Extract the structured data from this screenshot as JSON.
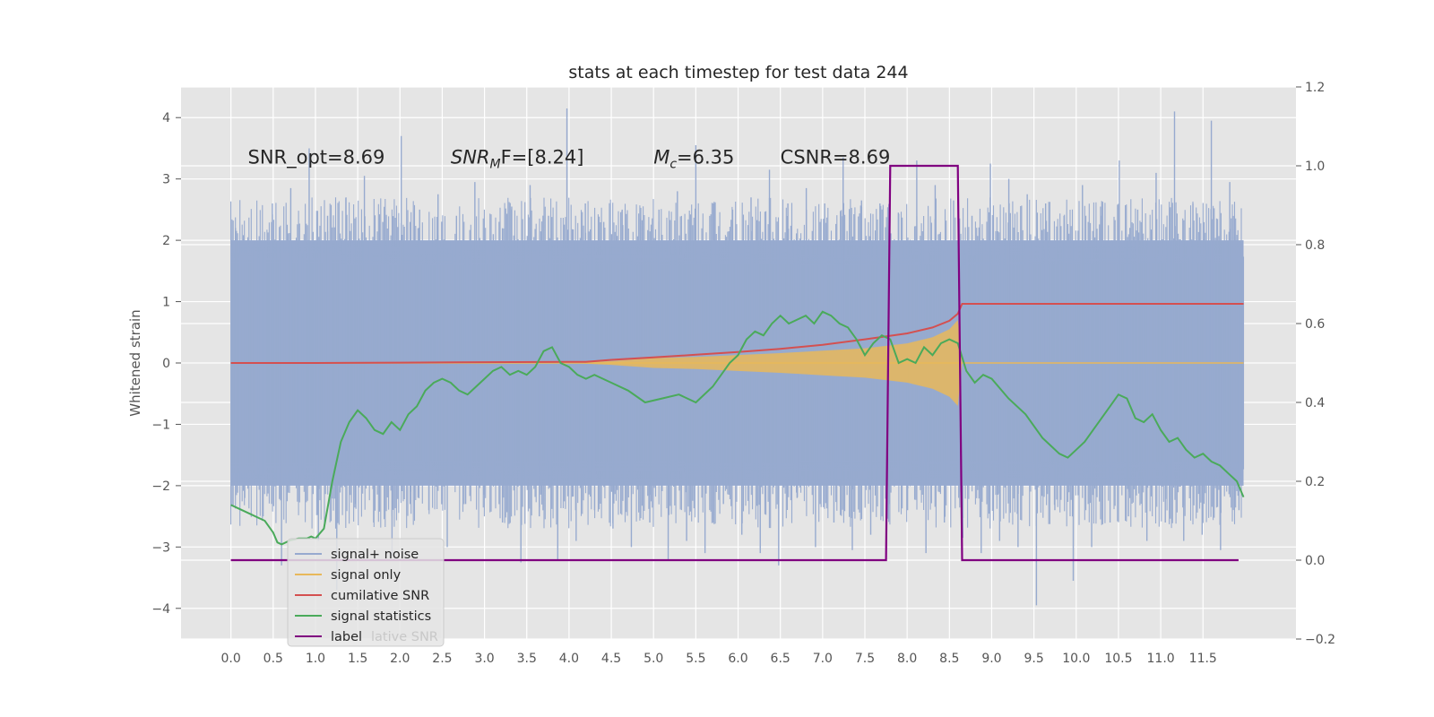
{
  "chart_data": {
    "type": "line",
    "title": "stats at each timestep for test data 244",
    "ylabel": "Whitened strain",
    "xlabel": "",
    "grid": true,
    "xlim": [
      -0.59,
      12.6
    ],
    "ylim": [
      -4.5,
      4.5
    ],
    "y2lim": [
      -0.2,
      1.2
    ],
    "x_ticks": [
      "0.0",
      "0.5",
      "1.0",
      "1.5",
      "2.0",
      "2.5",
      "3.0",
      "3.5",
      "4.0",
      "4.5",
      "5.0",
      "5.5",
      "6.0",
      "6.5",
      "7.0",
      "7.5",
      "8.0",
      "8.5",
      "9.0",
      "9.5",
      "10.0",
      "10.5",
      "11.0",
      "11.5"
    ],
    "y_ticks": [
      "4",
      "3",
      "2",
      "1",
      "0",
      "−1",
      "−2",
      "−3",
      "−4"
    ],
    "y2_ticks": [
      "1.2",
      "1.0",
      "0.8",
      "0.6",
      "0.4",
      "0.2",
      "0.0",
      "−0.2"
    ],
    "annotations": [
      {
        "text": "SNR_opt=8.69",
        "x": 0.2,
        "y": 3.25
      },
      {
        "text_prefix": "SNR",
        "text_sub": "M",
        "text_suffix": "F=[8.24]",
        "x": 2.6,
        "y": 3.25
      },
      {
        "text_prefix": "M",
        "text_sub": "c",
        "text_suffix": "=6.35",
        "x": 5.0,
        "y": 3.25
      },
      {
        "text": "CSNR=8.69",
        "x": 6.5,
        "y": 3.25
      }
    ],
    "legend": {
      "location": "lower-left",
      "entries": [
        "signal+ noise",
        "signal only",
        "cumilative SNR",
        "signal statistics",
        "label"
      ],
      "ghost_text": "lative SNR"
    },
    "colors": {
      "noise": "#97aacf",
      "signal": "#e8b85a",
      "cumulative": "#d45050",
      "statistics": "#4aaa5a",
      "label": "#800080",
      "axes_bg": "#e5e5e5",
      "grid": "#ffffff"
    },
    "series": [
      {
        "name": "signal+ noise",
        "axis": "left",
        "noise_band": [
          -2.0,
          2.0
        ],
        "x_range": [
          0.0,
          11.98
        ],
        "y_values": [
          2.2,
          -2.2,
          1.95,
          -2.5,
          2.6,
          -3.3,
          2.85,
          -2.0,
          3.5,
          -2.9,
          2.4,
          -3.7,
          2.7,
          -2.3,
          3.05,
          -2.6,
          2.3,
          -3.15,
          3.7,
          -2.1,
          2.5,
          -2.4,
          2.75,
          -3.0,
          2.4,
          -2.3,
          2.95,
          -2.15,
          2.1,
          -2.6,
          2.55,
          -3.25,
          2.9,
          -2.5,
          2.4,
          -3.2,
          4.15,
          -2.9,
          2.6,
          -2.4,
          2.3,
          -2.7,
          2.5,
          -3.0,
          2.35,
          -2.6,
          2.5,
          -3.2,
          2.8,
          -2.9,
          3.55,
          -3.1,
          2.6,
          -2.3,
          2.5,
          -2.8,
          2.7,
          -3.1,
          3.15,
          -3.3,
          2.6,
          -2.2,
          2.85,
          -3.0,
          2.6,
          -2.6,
          3.35,
          -3.05,
          2.65,
          -2.8,
          2.6,
          -2.3,
          2.45,
          -2.4,
          3.3,
          -3.1,
          2.9,
          -2.6,
          2.65,
          -2.85,
          2.4,
          -3.1,
          3.25,
          -2.9,
          3.0,
          -3.0,
          2.75,
          -3.95,
          2.6,
          -2.4,
          2.4,
          -3.55,
          2.9,
          -3.0,
          2.4,
          -2.6,
          3.3,
          -2.5,
          2.5,
          -2.9,
          3.1,
          -2.6,
          4.1,
          -2.9,
          2.6,
          -2.8,
          3.95,
          -3.05,
          2.95,
          -2.4
        ]
      },
      {
        "name": "signal only",
        "axis": "left",
        "note": "chirp envelope amplitude vs x",
        "x": [
          0.0,
          4.0,
          4.5,
          5.0,
          5.5,
          6.0,
          6.5,
          7.0,
          7.5,
          8.0,
          8.3,
          8.5,
          8.6,
          8.65,
          11.98
        ],
        "amplitude": [
          0.0,
          0.0,
          0.03,
          0.08,
          0.1,
          0.13,
          0.16,
          0.2,
          0.24,
          0.32,
          0.42,
          0.55,
          0.7,
          0.0,
          0.0
        ]
      },
      {
        "name": "cumilative SNR",
        "axis": "right",
        "x": [
          0.0,
          1.0,
          2.0,
          3.0,
          4.2,
          4.5,
          5.0,
          5.5,
          6.0,
          6.5,
          7.0,
          7.5,
          8.0,
          8.3,
          8.5,
          8.6,
          8.65,
          11.98
        ],
        "y": [
          0.5,
          0.5,
          0.501,
          0.502,
          0.503,
          0.508,
          0.514,
          0.521,
          0.528,
          0.536,
          0.546,
          0.56,
          0.575,
          0.59,
          0.607,
          0.625,
          0.65,
          0.65
        ]
      },
      {
        "name": "signal statistics",
        "axis": "right",
        "x": [
          0.0,
          0.1,
          0.2,
          0.3,
          0.4,
          0.5,
          0.55,
          0.6,
          0.7,
          0.8,
          0.9,
          0.95,
          1.0,
          1.1,
          1.2,
          1.3,
          1.4,
          1.5,
          1.6,
          1.7,
          1.8,
          1.9,
          2.0,
          2.1,
          2.2,
          2.3,
          2.4,
          2.5,
          2.6,
          2.7,
          2.8,
          2.9,
          3.0,
          3.1,
          3.2,
          3.3,
          3.4,
          3.5,
          3.6,
          3.7,
          3.8,
          3.9,
          4.0,
          4.1,
          4.2,
          4.3,
          4.5,
          4.7,
          4.9,
          5.1,
          5.3,
          5.5,
          5.7,
          5.9,
          6.0,
          6.1,
          6.2,
          6.3,
          6.4,
          6.5,
          6.6,
          6.7,
          6.8,
          6.9,
          7.0,
          7.1,
          7.2,
          7.3,
          7.4,
          7.5,
          7.6,
          7.7,
          7.8,
          7.9,
          8.0,
          8.1,
          8.2,
          8.3,
          8.4,
          8.5,
          8.6,
          8.7,
          8.8,
          8.9,
          9.0,
          9.2,
          9.4,
          9.6,
          9.7,
          9.8,
          9.9,
          10.0,
          10.1,
          10.2,
          10.3,
          10.4,
          10.5,
          10.6,
          10.7,
          10.8,
          10.9,
          11.0,
          11.1,
          11.2,
          11.3,
          11.4,
          11.5,
          11.6,
          11.7,
          11.8,
          11.9,
          11.98
        ],
        "y": [
          0.14,
          0.13,
          0.12,
          0.11,
          0.1,
          0.07,
          0.045,
          0.04,
          0.05,
          0.055,
          0.055,
          0.06,
          0.055,
          0.08,
          0.2,
          0.3,
          0.35,
          0.38,
          0.36,
          0.33,
          0.32,
          0.35,
          0.33,
          0.37,
          0.39,
          0.43,
          0.45,
          0.46,
          0.45,
          0.43,
          0.42,
          0.44,
          0.46,
          0.48,
          0.49,
          0.47,
          0.48,
          0.47,
          0.49,
          0.53,
          0.54,
          0.5,
          0.49,
          0.47,
          0.46,
          0.47,
          0.45,
          0.43,
          0.4,
          0.41,
          0.42,
          0.4,
          0.44,
          0.5,
          0.52,
          0.56,
          0.58,
          0.57,
          0.6,
          0.62,
          0.6,
          0.61,
          0.62,
          0.6,
          0.63,
          0.62,
          0.6,
          0.59,
          0.56,
          0.52,
          0.55,
          0.57,
          0.56,
          0.5,
          0.51,
          0.5,
          0.54,
          0.52,
          0.55,
          0.56,
          0.55,
          0.48,
          0.45,
          0.47,
          0.46,
          0.41,
          0.37,
          0.31,
          0.29,
          0.27,
          0.26,
          0.28,
          0.3,
          0.33,
          0.36,
          0.39,
          0.42,
          0.41,
          0.36,
          0.35,
          0.37,
          0.33,
          0.3,
          0.31,
          0.28,
          0.26,
          0.27,
          0.25,
          0.24,
          0.22,
          0.2,
          0.16
        ]
      },
      {
        "name": "label",
        "axis": "right",
        "x": [
          0.0,
          7.75,
          7.8,
          8.6,
          8.65,
          11.92
        ],
        "y": [
          0.0,
          0.0,
          1.0,
          1.0,
          0.0,
          0.0
        ]
      }
    ]
  }
}
